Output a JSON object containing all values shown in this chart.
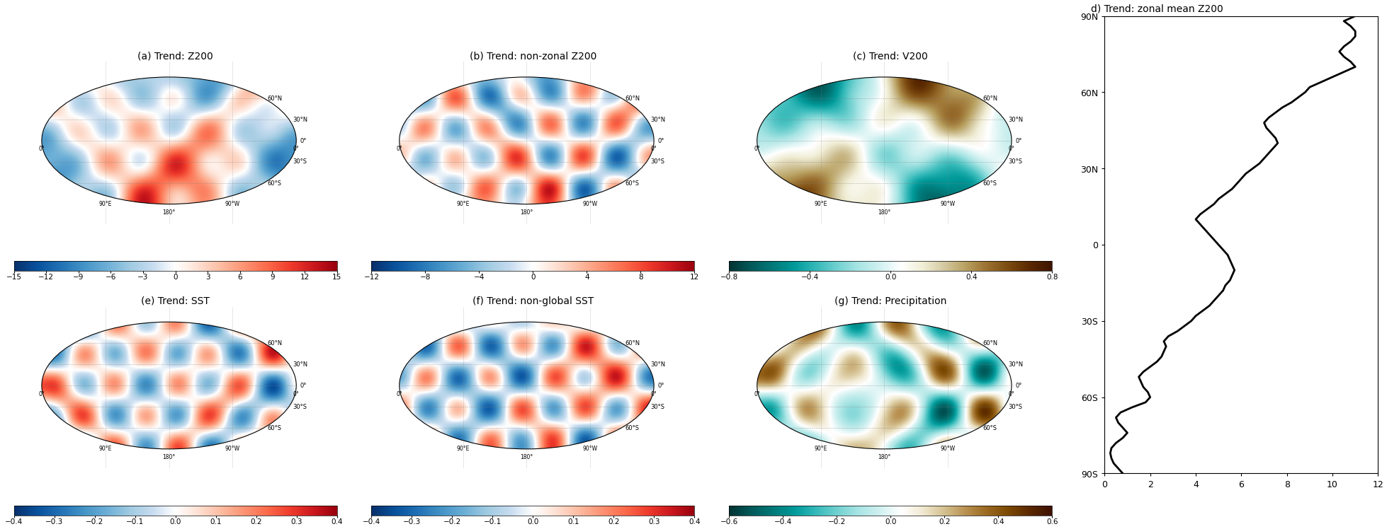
{
  "title_d": "d) Trend: zonal mean Z200",
  "title_a": "(a) Trend: Z200",
  "title_b": "(b) Trend: non-zonal Z200",
  "title_c": "(c) Trend: V200",
  "title_e": "(e) Trend: SST",
  "title_f": "(f) Trend: non-global SST",
  "title_g": "(g) Trend: Precipitation",
  "cbar_a_ticks": [
    -15,
    -12,
    -9,
    -6,
    -3,
    0,
    3,
    6,
    9,
    12,
    15
  ],
  "cbar_b_ticks": [
    -12,
    -8,
    -4,
    0,
    4,
    8,
    12
  ],
  "cbar_c_ticks": [
    -0.8,
    -0.4,
    0,
    0.4,
    0.8
  ],
  "cbar_e_ticks": [
    -0.4,
    -0.3,
    -0.2,
    -0.1,
    0,
    0.1,
    0.2,
    0.3,
    0.4
  ],
  "cbar_f_ticks": [
    -0.4,
    -0.3,
    -0.2,
    -0.1,
    0,
    0.1,
    0.2,
    0.3,
    0.4
  ],
  "cbar_g_ticks": [
    -0.6,
    -0.4,
    -0.2,
    0,
    0.2,
    0.4,
    0.6
  ],
  "line_lats": [
    -90,
    -88,
    -86,
    -84,
    -82,
    -80,
    -78,
    -76,
    -74,
    -72,
    -70,
    -68,
    -66,
    -64,
    -62,
    -60,
    -58,
    -56,
    -54,
    -52,
    -50,
    -48,
    -46,
    -44,
    -42,
    -40,
    -38,
    -36,
    -34,
    -32,
    -30,
    -28,
    -26,
    -24,
    -22,
    -20,
    -18,
    -16,
    -14,
    -12,
    -10,
    -8,
    -6,
    -4,
    -2,
    0,
    2,
    4,
    6,
    8,
    10,
    12,
    14,
    16,
    18,
    20,
    22,
    24,
    26,
    28,
    30,
    32,
    34,
    36,
    38,
    40,
    42,
    44,
    46,
    48,
    50,
    52,
    54,
    56,
    58,
    60,
    62,
    64,
    66,
    68,
    70,
    72,
    74,
    76,
    78,
    80,
    82,
    84,
    86,
    88,
    90
  ],
  "line_vals": [
    0.8,
    0.6,
    0.4,
    0.3,
    0.25,
    0.3,
    0.5,
    0.8,
    1.0,
    0.8,
    0.6,
    0.5,
    0.7,
    1.2,
    1.8,
    2.0,
    1.9,
    1.7,
    1.6,
    1.5,
    1.7,
    2.0,
    2.3,
    2.5,
    2.6,
    2.7,
    2.6,
    2.8,
    3.2,
    3.5,
    3.8,
    4.0,
    4.3,
    4.6,
    4.8,
    5.0,
    5.2,
    5.3,
    5.5,
    5.6,
    5.7,
    5.6,
    5.5,
    5.4,
    5.2,
    5.0,
    4.8,
    4.6,
    4.4,
    4.2,
    4.0,
    4.2,
    4.5,
    4.8,
    5.0,
    5.3,
    5.6,
    5.8,
    6.0,
    6.2,
    6.5,
    6.8,
    7.0,
    7.2,
    7.4,
    7.6,
    7.5,
    7.3,
    7.1,
    7.0,
    7.2,
    7.5,
    7.8,
    8.2,
    8.5,
    8.8,
    9.0,
    9.5,
    10.0,
    10.5,
    11.0,
    10.8,
    10.5,
    10.3,
    10.5,
    10.8,
    11.0,
    11.0,
    10.8,
    10.5,
    11.0
  ],
  "yticks_d": [
    90,
    60,
    30,
    0,
    -30,
    -60,
    -90
  ],
  "ytick_labels_d": [
    "90N",
    "60N",
    "30N",
    "0",
    "30S",
    "60S",
    "90S"
  ],
  "xticks_d": [
    0,
    2,
    4,
    6,
    8,
    10,
    12
  ],
  "xlim_d": [
    0,
    12
  ],
  "ylim_d": [
    -90,
    90
  ],
  "figure_bg": "#ffffff",
  "line_color": "#000000",
  "line_width": 2.0,
  "cmap_a_colors": [
    "#08306b",
    "#08519c",
    "#2171b5",
    "#4292c6",
    "#6baed6",
    "#9ecae1",
    "#c6dbef",
    "#ffffff",
    "#fee0d2",
    "#fcbba1",
    "#fc9272",
    "#fb6a4a",
    "#ef3b2c",
    "#cb181d",
    "#99000d"
  ],
  "cmap_b_colors": [
    "#08306b",
    "#08519c",
    "#2171b5",
    "#4292c6",
    "#6baed6",
    "#9ecae1",
    "#c6dbef",
    "#ffffff",
    "#fee0d2",
    "#fcbba1",
    "#fc9272",
    "#fb6a4a",
    "#ef3b2c",
    "#cb181d",
    "#99000d"
  ],
  "cmap_c_colors": [
    "#003333",
    "#005959",
    "#007878",
    "#009999",
    "#33b8b8",
    "#70d0d0",
    "#a8e4e4",
    "#d0f0f0",
    "#ffffff",
    "#f0edd5",
    "#d4c8a0",
    "#b8a060",
    "#9a7030",
    "#7a4a10",
    "#5a2800",
    "#3d1400"
  ],
  "cmap_ef_colors": [
    "#08306b",
    "#08519c",
    "#2171b5",
    "#4292c6",
    "#6baed6",
    "#9ecae1",
    "#c6dbef",
    "#ffffff",
    "#fee0d2",
    "#fcbba1",
    "#fc9272",
    "#fb6a4a",
    "#ef3b2c",
    "#cb181d",
    "#99000d"
  ],
  "cmap_g_colors": [
    "#003333",
    "#005959",
    "#007878",
    "#009999",
    "#33b8b8",
    "#70d0d0",
    "#a8e4e4",
    "#d0f0f0",
    "#ffffff",
    "#f0e8d0",
    "#d4c090",
    "#b89050",
    "#9a6820",
    "#7a4800",
    "#5a2800",
    "#3d1000"
  ]
}
